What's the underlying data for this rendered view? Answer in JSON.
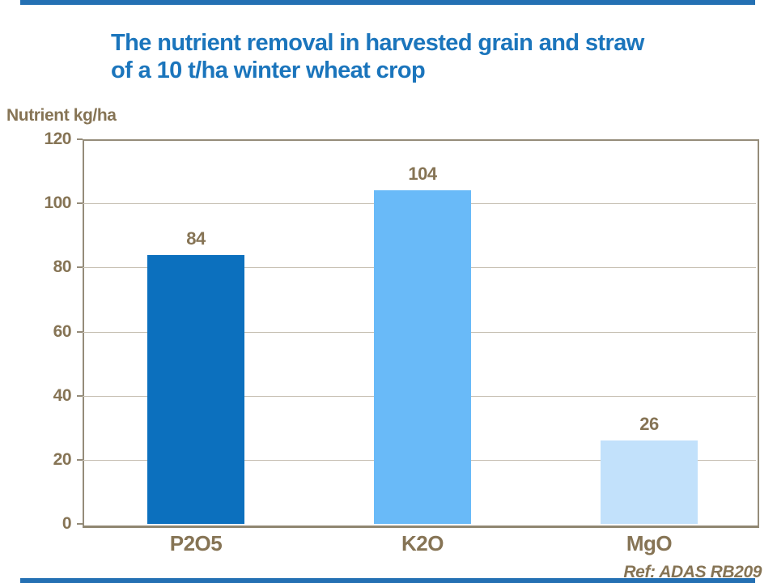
{
  "header": {
    "title_line1": "The nutrient removal in harvested grain and straw",
    "title_line2": "of a 10 t/ha winter wheat crop"
  },
  "footer": {
    "ref_text": "Ref: ADAS RB209"
  },
  "chart_data": {
    "type": "bar",
    "title": "The nutrient removal in harvested grain and straw of a 10 t/ha winter wheat crop",
    "ylabel": "Nutrient kg/ha",
    "xlabel": "",
    "categories": [
      "P2O5",
      "K2O",
      "MgO"
    ],
    "values": [
      84,
      104,
      26
    ],
    "data_labels": [
      "84",
      "104",
      "26"
    ],
    "bar_colors": [
      "#0c70be",
      "#69baf8",
      "#c2e1fb"
    ],
    "ylim": [
      0,
      120
    ],
    "yticks": [
      0,
      20,
      40,
      60,
      80,
      100,
      120
    ],
    "grid": true,
    "legend": "none",
    "source": "Ref: ADAS RB209"
  },
  "colors": {
    "title_blue": "#1b75bc",
    "border_strip_blue": "#2470b3",
    "label_brown": "#867455",
    "plot_border": "#958c7a",
    "axis_line": "#8f8671",
    "gridline": "#c6bfb2"
  }
}
